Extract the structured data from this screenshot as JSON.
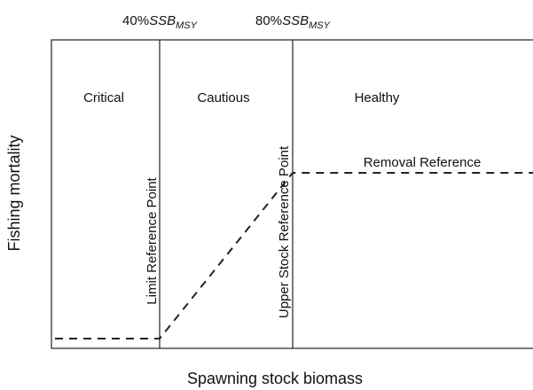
{
  "top_labels": [
    {
      "prefix": "40%",
      "symbol": "SSB",
      "subscript": "MSY"
    },
    {
      "prefix": "80%",
      "symbol": "SSB",
      "subscript": "MSY"
    }
  ],
  "zones": [
    "Critical",
    "Cautious",
    "Healthy"
  ],
  "reference_points": [
    "Limit Reference Point",
    "Upper Stock Reference Point"
  ],
  "removal_label": "Removal Reference",
  "y_axis_label": "Fishing mortality",
  "x_axis_label": "Spawning stock biomass"
}
